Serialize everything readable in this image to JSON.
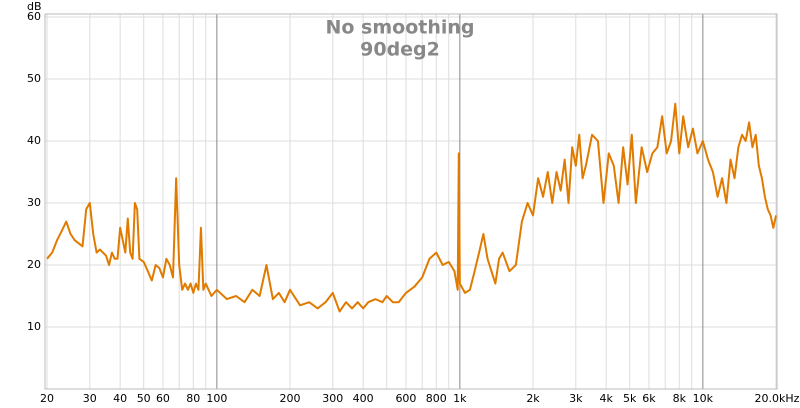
{
  "chart_data": {
    "type": "line",
    "title": "No smoothing",
    "subtitle": "90deg2",
    "ylabel": "dB",
    "xscale": "log",
    "grid": true,
    "color": "#e07b00",
    "xlim": [
      20,
      20000
    ],
    "ylim": [
      0,
      60
    ],
    "yticks": [
      10,
      20,
      30,
      40,
      50,
      60
    ],
    "xticks": [
      20,
      30,
      40,
      50,
      60,
      80,
      100,
      200,
      300,
      400,
      600,
      800,
      {
        "value": 1000,
        "label": "1k"
      },
      {
        "value": 2000,
        "label": "2k"
      },
      {
        "value": 3000,
        "label": "3k"
      },
      {
        "value": 4000,
        "label": "4k"
      },
      {
        "value": 5000,
        "label": "5k"
      },
      {
        "value": 6000,
        "label": "6k"
      },
      {
        "value": 8000,
        "label": "8k"
      },
      {
        "value": 10000,
        "label": "10k"
      },
      {
        "value": 20000,
        "label": "20.0kHz"
      }
    ],
    "xminor": [
      70,
      90,
      500,
      700,
      900,
      7000,
      9000
    ],
    "x": [
      20,
      21,
      22,
      23,
      24,
      25,
      26,
      27,
      28,
      29,
      30,
      31,
      32,
      33,
      34,
      35,
      36,
      37,
      38,
      39,
      40,
      41,
      42,
      43,
      44,
      45,
      46,
      47,
      48,
      50,
      52,
      54,
      56,
      58,
      60,
      62,
      64,
      66,
      68,
      70,
      72,
      74,
      76,
      78,
      80,
      82,
      84,
      86,
      88,
      90,
      95,
      100,
      110,
      120,
      130,
      140,
      150,
      160,
      170,
      180,
      190,
      200,
      220,
      240,
      260,
      280,
      300,
      320,
      340,
      360,
      380,
      400,
      420,
      450,
      480,
      500,
      530,
      560,
      600,
      650,
      700,
      750,
      800,
      850,
      900,
      950,
      980,
      990,
      1000,
      1050,
      1100,
      1150,
      1200,
      1250,
      1300,
      1400,
      1450,
      1500,
      1600,
      1700,
      1800,
      1900,
      2000,
      2100,
      2200,
      2300,
      2400,
      2500,
      2600,
      2700,
      2800,
      2900,
      3000,
      3100,
      3200,
      3300,
      3500,
      3700,
      3900,
      4100,
      4300,
      4500,
      4700,
      4900,
      5100,
      5300,
      5600,
      5900,
      6200,
      6500,
      6800,
      7100,
      7400,
      7700,
      8000,
      8300,
      8700,
      9100,
      9500,
      10000,
      10500,
      11000,
      11500,
      12000,
      12500,
      13000,
      13500,
      14000,
      14500,
      15000,
      15500,
      16000,
      16500,
      17000,
      17500,
      18000,
      18500,
      19000,
      19500,
      20000
    ],
    "series": [
      {
        "name": "90deg2",
        "color": "#e07b00",
        "values": [
          21,
          22,
          24,
          25.5,
          27,
          25,
          24,
          23.5,
          23,
          29,
          30,
          25,
          22,
          22.5,
          22,
          21.5,
          20,
          22,
          21,
          21,
          26,
          24,
          22,
          27.5,
          22,
          21,
          30,
          29,
          21,
          20.5,
          19,
          17.5,
          20,
          19.5,
          18,
          21,
          20,
          18,
          34,
          20,
          16,
          17,
          16,
          17,
          15.5,
          17,
          16,
          26,
          16,
          17,
          15,
          16,
          14.5,
          15,
          14,
          16,
          15,
          20,
          14.5,
          15.5,
          14,
          16,
          13.5,
          14,
          13,
          14,
          15.5,
          12.5,
          14,
          13,
          14,
          13,
          14,
          14.5,
          14,
          15,
          14,
          14,
          15.5,
          16.5,
          18,
          21,
          22,
          20,
          20.5,
          19,
          16,
          38,
          17,
          15.5,
          16,
          19,
          22,
          25,
          21,
          17,
          21,
          22,
          19,
          20,
          27,
          30,
          28,
          34,
          31,
          35,
          30,
          35,
          32,
          37,
          30,
          39,
          36,
          41,
          34,
          36,
          41,
          40,
          30,
          38,
          36,
          30,
          39,
          33,
          41,
          30,
          39,
          35,
          38,
          39,
          44,
          38,
          40,
          46,
          38,
          44,
          39,
          42,
          38,
          40,
          37,
          35,
          31,
          34,
          30,
          37,
          34,
          39,
          41,
          40,
          43,
          39,
          41,
          36,
          34,
          31,
          29,
          28,
          26,
          28
        ]
      }
    ]
  }
}
